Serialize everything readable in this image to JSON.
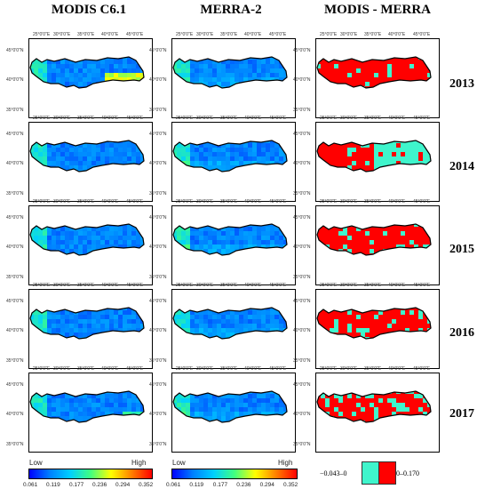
{
  "columns": [
    "MODIS C6.1",
    "MERRA-2",
    "MODIS - MERRA"
  ],
  "years": [
    "2013",
    "2014",
    "2015",
    "2016",
    "2017"
  ],
  "lon_ticks": [
    "25°0'0\"E",
    "30°0'0\"E",
    "35°0'0\"E",
    "40°0'0\"E",
    "45°0'0\"E"
  ],
  "lat_ticks": [
    "45°0'0\"N",
    "40°0'0\"N",
    "35°0'0\"N"
  ],
  "colorbar": {
    "low": "Low",
    "high": "High",
    "ticks": [
      "0.061",
      "0.119",
      "0.177",
      "0.236",
      "0.294",
      "0.352"
    ],
    "colors": [
      "#0000ff",
      "#0080ff",
      "#00d0ff",
      "#40ff80",
      "#ffff00",
      "#ff8000",
      "#ff0000"
    ]
  },
  "diff_legend": {
    "negative": "−0.043–0",
    "positive": "0–0.170",
    "negative_color": "#3ff5cc",
    "positive_color": "#ff0000"
  }
}
